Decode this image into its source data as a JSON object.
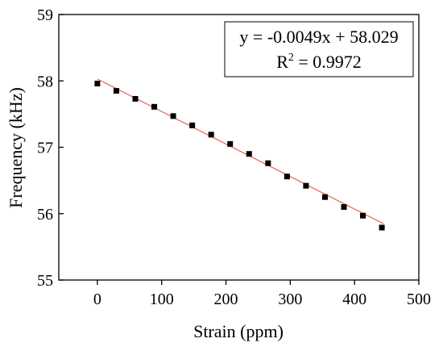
{
  "chart_data": {
    "type": "scatter",
    "xlabel": "Strain (ppm)",
    "ylabel": "Frequency (kHz)",
    "xlim": [
      -60,
      500
    ],
    "ylim": [
      55,
      59
    ],
    "x_ticks": [
      0,
      100,
      200,
      300,
      400,
      500
    ],
    "y_ticks": [
      55,
      56,
      57,
      58,
      59
    ],
    "x_tick_labels": [
      "0",
      "100",
      "200",
      "300",
      "400",
      "500"
    ],
    "y_tick_labels": [
      "55",
      "56",
      "57",
      "58",
      "59"
    ],
    "series": [
      {
        "marker": "square",
        "color": "#000000",
        "x": [
          0,
          29.5,
          59,
          88.5,
          118,
          147.5,
          177,
          206.5,
          236,
          265.5,
          295,
          324.5,
          354,
          383.5,
          413,
          442.5
        ],
        "y": [
          57.96,
          57.85,
          57.73,
          57.61,
          57.47,
          57.33,
          57.19,
          57.05,
          56.9,
          56.76,
          56.56,
          56.42,
          56.25,
          56.1,
          55.97,
          55.79
        ]
      }
    ],
    "fit": {
      "slope": -0.0049,
      "intercept": 58.029,
      "color": "#e8625a",
      "x_range": [
        0,
        445
      ]
    },
    "annotation": {
      "line1": "y = -0.0049x + 58.029",
      "line2_prefix": "R",
      "line2_sup": "2",
      "line2_suffix": " = 0.9972",
      "placement": "top-right"
    }
  }
}
